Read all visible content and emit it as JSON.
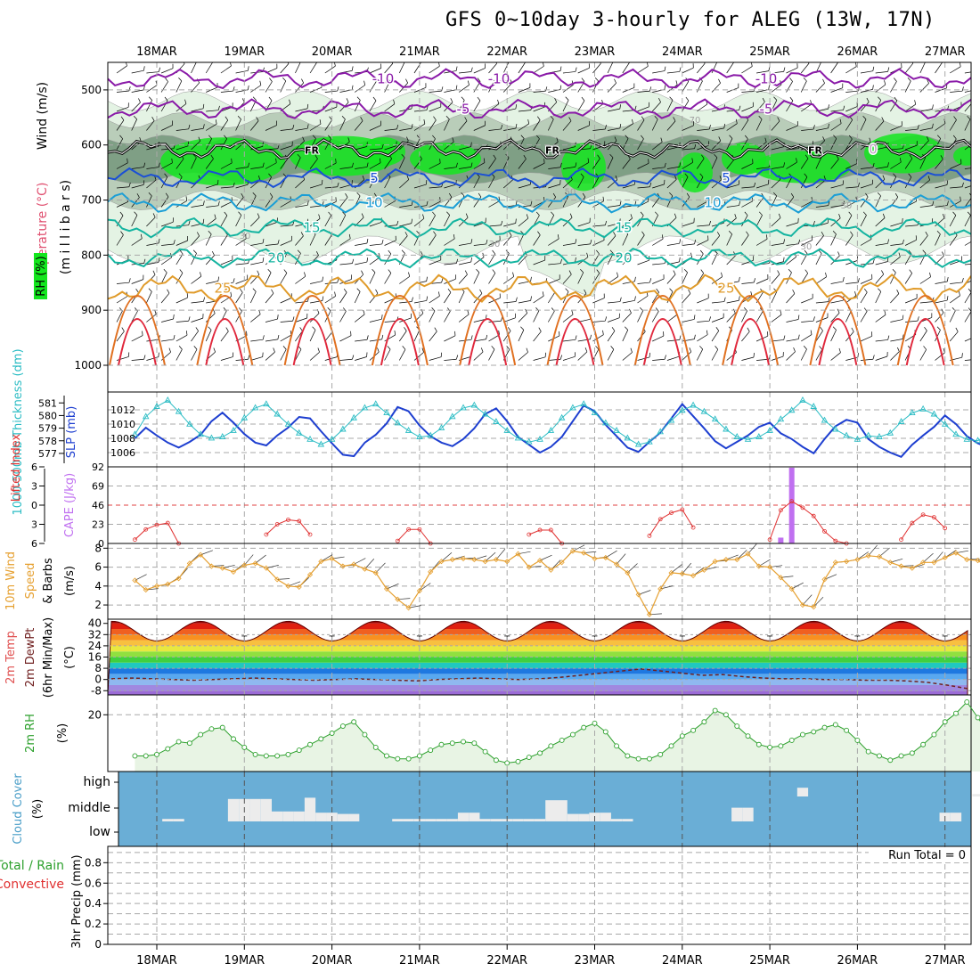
{
  "title": "GFS 0~10day 3-hourly for ALEG (13W, 17N)",
  "colors": {
    "grid": "#a8a8a8",
    "rh_light": "#e4f3e4",
    "rh_mid": "#b9cdb9",
    "rh_dark": "#7f9f85",
    "rh_green": "#14e61e",
    "t_purple": "#8a1aa8",
    "t_blue": "#1a4fd6",
    "t_cyan": "#1a9ed6",
    "t_teal": "#14b4a0",
    "t_orange": "#e09b2a",
    "t_dkorange": "#e07020",
    "t_red": "#e0283c",
    "slp": "#1e3fd0",
    "thick": "#2bbcc4",
    "cape": "#c070f0",
    "li": "#e03030",
    "wind": "#e6a030",
    "rh2m": "#2ca02c",
    "cloud": "#6aaed6",
    "cloud_clear": "#ececec"
  },
  "chart_data": [
    {
      "type": "contour",
      "name": "upper-air",
      "x_ticks": [
        "18MAR",
        "19MAR",
        "20MAR",
        "21MAR",
        "22MAR",
        "23MAR",
        "24MAR",
        "25MAR",
        "26MAR",
        "27MAR"
      ],
      "ylabel_parts": [
        "Wind (m/s)",
        "Temperature (°C)",
        "RH (%)",
        "(m i l l i b a r s)"
      ],
      "y_ticks": [
        "500",
        "600",
        "700",
        "800",
        "900",
        "1000"
      ],
      "ylim": [
        450,
        1000
      ],
      "isotherms": [
        {
          "label": "-10",
          "color": "#8a1aa8",
          "p": 480
        },
        {
          "label": "-5",
          "color": "#8a1aa8",
          "p": 535
        },
        {
          "label": "0",
          "color": "#8a1aa8",
          "p": 608
        },
        {
          "label": "5",
          "color": "#1a4fd6",
          "p": 660
        },
        {
          "label": "10",
          "color": "#1a9ed6",
          "p": 705
        },
        {
          "label": "15",
          "color": "#14b4a0",
          "p": 750
        },
        {
          "label": "20",
          "color": "#14b4a0",
          "p": 805
        },
        {
          "label": "25",
          "color": "#e09b2a",
          "p": 860
        }
      ],
      "freezing_label": "FR",
      "rh_labels": [
        "30",
        "50",
        "70"
      ]
    },
    {
      "type": "line",
      "name": "slp-thickness",
      "left_axis_label": "1000-500mb Thickness (dm)",
      "left_ticks": [
        "581",
        "580",
        "579",
        "578",
        "577"
      ],
      "right_axis_label": "SLP (mb)",
      "right_ticks": [
        "1012",
        "1010",
        "1008",
        "1006"
      ],
      "slp_ylim": [
        1005,
        1013.5
      ],
      "thick_ylim": [
        576.5,
        581.3
      ],
      "slp": [
        1008.0,
        1009.5,
        1008.4,
        1007.4,
        1006.7,
        1007.5,
        1008.5,
        1010.4,
        1011.6,
        1010.2,
        1008.6,
        1007.4,
        1007.0,
        1008.4,
        1009.5,
        1011.0,
        1010.8,
        1009.0,
        1007.3,
        1005.7,
        1005.5,
        1007.4,
        1008.5,
        1010.1,
        1012.4,
        1011.8,
        1009.8,
        1008.3,
        1007.4,
        1006.9,
        1007.9,
        1009.4,
        1011.4,
        1012.2,
        1010.4,
        1008.2,
        1007.1,
        1006.0,
        1006.8,
        1008.2,
        1010.4,
        1012.6,
        1011.8,
        1009.9,
        1008.3,
        1006.7,
        1006.1,
        1007.5,
        1008.8,
        1010.8,
        1012.8,
        1011.1,
        1009.4,
        1007.6,
        1006.6,
        1007.5,
        1008.4,
        1009.6,
        1010.2,
        1008.7,
        1007.9,
        1006.8,
        1005.9,
        1007.9,
        1009.7,
        1010.6,
        1010.2,
        1007.9,
        1006.8,
        1006.0,
        1005.4,
        1007.1,
        1008.4,
        1009.6,
        1011.2,
        1010.0,
        1008.3,
        1007.3,
        1006.7,
        1007.6,
        1009.3,
        1011.0,
        1010.8,
        1008.8,
        1007.4,
        1006.8,
        1006.2,
        1007.5,
        1009.5,
        1011.4,
        1012.7,
        1011.6,
        1009.4,
        1008.2,
        1007.5,
        1008.0,
        1008.8,
        1010.5,
        1011.0,
        1010.2,
        1009.1,
        1008.0,
        1007.6,
        1008.4,
        1009.8,
        1011.1,
        1010.3,
        1008.8,
        1007.4,
        1006.9,
        1008.0,
        1009.5,
        1010.5,
        1008.9,
        1007.3,
        1007.5,
        1006.9
      ],
      "thickness": [
        578.5,
        579.9,
        580.7,
        581.2,
        580.3,
        579.3,
        578.5,
        578.2,
        578.3,
        578.8,
        579.8,
        580.6,
        580.9,
        580.1,
        579.3,
        578.6,
        578.1,
        577.7,
        578.1,
        578.9,
        579.8,
        580.6,
        580.9,
        580.2,
        579.4,
        578.8,
        578.3,
        578.4,
        579.0,
        579.9,
        580.6,
        580.8,
        580.1,
        579.5,
        578.8,
        578.2,
        577.9,
        578.1,
        578.8,
        579.8,
        580.6,
        580.9,
        580.2,
        579.4,
        578.8,
        578.2,
        577.7,
        577.9,
        578.7,
        579.6,
        580.4,
        580.8,
        580.3,
        579.7,
        578.9,
        578.3,
        578.1,
        578.3,
        578.8,
        579.7,
        580.4,
        581.2,
        580.7,
        579.6,
        578.9,
        578.4,
        578.1,
        578.4,
        578.3,
        578.6,
        579.5,
        580.2,
        580.5,
        580.1,
        579.3,
        578.5,
        578.1,
        578.0,
        578.6,
        579.4,
        580.4,
        580.8,
        580.2,
        579.6,
        578.9,
        578.1,
        577.7,
        577.8,
        578.4,
        579.4,
        580.2,
        580.5,
        579.9,
        579.2,
        578.7,
        577.9,
        577.5,
        577.8,
        578.6,
        579.4,
        580.1,
        580.4,
        579.8,
        579.1,
        578.6,
        578.0,
        577.5,
        577.1,
        577.3,
        578.2,
        579.3,
        580.2,
        580.3,
        579.6,
        578.8,
        578.0,
        577.4
      ]
    },
    {
      "type": "bar+line",
      "name": "cape-li",
      "left_axis_label": "Lifted Index",
      "left_ticks": [
        "-6",
        "-3",
        "0",
        "3",
        "6"
      ],
      "right_axis_label": "CAPE (J/kg)",
      "right_ticks": [
        "92",
        "69",
        "46",
        "23",
        "0"
      ],
      "li_ylim": [
        6,
        -6
      ],
      "cape_ylim": [
        0,
        92
      ],
      "li_x": [
        0,
        1,
        2,
        3,
        4,
        12,
        13,
        14,
        15,
        16,
        24,
        25,
        26,
        27,
        36,
        37,
        38,
        39,
        47,
        48,
        49,
        50,
        51,
        58,
        59,
        60,
        61,
        62,
        63,
        64,
        65,
        70,
        71,
        72,
        73,
        74,
        82,
        83,
        84,
        95,
        106,
        107
      ],
      "li": [
        5.4,
        3.8,
        3.1,
        2.8,
        6,
        4.6,
        3.0,
        2.3,
        2.5,
        4.6,
        5.6,
        3.8,
        3.8,
        6,
        4.6,
        3.9,
        3.9,
        6,
        4.8,
        2.2,
        1.2,
        0.7,
        3.5,
        5.4,
        0.8,
        -0.6,
        0.4,
        1.7,
        4.1,
        5.6,
        6,
        5.4,
        2.8,
        1.5,
        1.9,
        3.6,
        4.1,
        3.6,
        4.6,
        5.6,
        4.8,
        4.3
      ],
      "cape_x": [
        59,
        60
      ],
      "cape": [
        7,
        91
      ]
    },
    {
      "type": "line",
      "name": "10m-wind",
      "axis_label": "10m Wind Speed & Barbs",
      "units_label": "(m/s)",
      "y_ticks": [
        "8",
        "6",
        "4",
        "2"
      ],
      "ylim": [
        0.5,
        8.5
      ],
      "values": [
        4.6,
        3.6,
        4.0,
        4.2,
        4.8,
        6.4,
        7.3,
        6.1,
        5.9,
        5.5,
        6.2,
        6.4,
        5.9,
        4.7,
        4.0,
        3.9,
        5.2,
        6.6,
        6.9,
        6.1,
        6.3,
        5.8,
        5.4,
        3.7,
        2.6,
        1.7,
        3.5,
        5.5,
        6.6,
        6.8,
        6.9,
        6.8,
        6.6,
        6.8,
        6.6,
        7.4,
        6.0,
        6.7,
        5.7,
        6.5,
        7.7,
        7.5,
        6.9,
        7.0,
        6.3,
        5.4,
        3.1,
        1.0,
        3.7,
        5.4,
        5.3,
        5.1,
        5.7,
        6.6,
        6.8,
        6.8,
        7.4,
        6.1,
        6.0,
        4.9,
        3.7,
        2.0,
        1.8,
        4.7,
        6.5,
        6.6,
        6.8,
        7.2,
        7.1,
        6.5,
        6.1,
        5.9,
        6.5,
        6.5,
        7.0,
        7.5,
        6.8,
        6.7,
        5.9,
        5.4,
        6.0,
        7.2,
        7.4,
        6.6,
        6.9,
        6.5,
        5.8,
        4.8,
        6.0,
        6.6,
        6.9,
        7.3,
        6.9,
        7.3,
        7.6,
        8.0,
        7.1,
        6.5,
        4.6,
        3.9,
        3.6,
        5.4,
        6.1,
        5.8,
        4.4,
        3.1,
        1.3,
        2.1,
        3.5,
        5.2,
        6.4,
        6.2,
        5.6,
        6.1,
        6.3,
        4.9
      ]
    },
    {
      "type": "area",
      "name": "2m-temp",
      "axis_label": "2m Temp 2m DewPt (6hr Min/Max)",
      "units_label": "(°C)",
      "y_ticks": [
        "40",
        "32",
        "24",
        "16",
        "8",
        "0",
        "-8"
      ],
      "ylim": [
        -11,
        43
      ],
      "temp_min": 27.5,
      "temp_max": 41.5,
      "daily_peak_x": [
        6,
        14,
        22,
        30,
        38,
        46,
        54,
        62,
        70,
        78,
        86,
        94,
        102,
        110
      ],
      "dewpoint": [
        0.5,
        1.0,
        0.5,
        0.0,
        -0.5,
        0.0,
        0.5,
        1.0,
        0.5,
        0.0,
        -0.5,
        0.0,
        0.5,
        0.0,
        -0.5,
        -1.0,
        0.0,
        0.5,
        1.0,
        0.5,
        0.0,
        0.5,
        1.5,
        3.0,
        4.5,
        6.0,
        7.5,
        6.0,
        4.5,
        3.0,
        3.5,
        2.0,
        1.0,
        0.5,
        0.5,
        0.0,
        0.0,
        -0.5,
        -0.5,
        -1.0,
        -2.0,
        -4.0,
        -6.5
      ]
    },
    {
      "type": "line",
      "name": "2m-rh",
      "axis_label": "2m RH",
      "units_label": "(%)",
      "y_ticks": [
        "20"
      ],
      "ylim": [
        0,
        27
      ],
      "values": [
        5.5,
        5.5,
        6.0,
        8.0,
        10.5,
        10.0,
        13.0,
        15.0,
        15.5,
        11.5,
        8.5,
        6.0,
        5.5,
        5.5,
        6.0,
        7.5,
        9.5,
        11.5,
        13.5,
        16.0,
        17.5,
        13.0,
        8.5,
        5.5,
        4.5,
        4.5,
        5.5,
        7.5,
        9.5,
        10.0,
        10.5,
        10.0,
        7.0,
        4.0,
        3.0,
        3.5,
        5.0,
        6.5,
        9.0,
        11.0,
        13.0,
        15.5,
        17.0,
        14.0,
        9.0,
        5.5,
        4.5,
        4.5,
        6.0,
        9.0,
        12.5,
        14.5,
        17.5,
        21.5,
        20.0,
        16.0,
        12.5,
        9.5,
        8.5,
        9.0,
        11.0,
        13.0,
        14.0,
        15.5,
        16.5,
        14.5,
        11.0,
        7.0,
        5.5,
        4.0,
        5.5,
        6.5,
        9.5,
        13.0,
        17.5,
        20.5,
        24.5,
        19.0,
        13.5,
        7.5,
        4.0,
        5.5,
        8.0,
        10.5,
        13.0,
        15.5,
        17.5,
        19.5,
        19.5,
        16.5,
        10.5,
        6.0,
        4.5,
        3.5,
        4.5,
        5.5,
        7.0,
        9.0,
        12.5,
        14.0,
        16.5,
        17.0,
        14.0,
        9.5,
        6.0,
        4.5,
        3.5,
        3.5,
        5.0,
        5.5,
        6.0,
        6.5,
        6.5,
        6.0,
        5.5,
        5.5,
        5.5
      ]
    },
    {
      "type": "heatmap",
      "name": "cloud-cover",
      "axis_label": "Cloud Cover",
      "units_label": "(%)",
      "y_ticks": [
        "high",
        "middle",
        "low"
      ],
      "levels": [
        "high",
        "middle",
        "low"
      ],
      "clear": [
        [
          110,
          0,
          0.05
        ],
        [
          111,
          0,
          0.35
        ],
        [
          112,
          0,
          0.75
        ],
        [
          113,
          0,
          0.35
        ],
        [
          85,
          0,
          0.45
        ],
        [
          86,
          0,
          0.95
        ],
        [
          87,
          0,
          0.95
        ],
        [
          88,
          0,
          0.95
        ],
        [
          89,
          0,
          0.95
        ],
        [
          90,
          0,
          0.95
        ],
        [
          91,
          0,
          0.95
        ],
        [
          92,
          0,
          0.95
        ],
        [
          93,
          0,
          0.95
        ],
        [
          94,
          0,
          0.95
        ],
        [
          95,
          0,
          0.95
        ],
        [
          96,
          0,
          0.95
        ],
        [
          97,
          0,
          0.95
        ],
        [
          98,
          0,
          0.95
        ],
        [
          99,
          0,
          0.95
        ],
        [
          100,
          0,
          0.95
        ],
        [
          82,
          0,
          0.3
        ],
        [
          83,
          0,
          0.3
        ],
        [
          84,
          0,
          0.3
        ],
        [
          77,
          0,
          0.1
        ],
        [
          61,
          0,
          0.35
        ],
        [
          9,
          1,
          0.9
        ],
        [
          10,
          1,
          0.9
        ],
        [
          11,
          1,
          0.9
        ],
        [
          12,
          1,
          0.9
        ],
        [
          13,
          1,
          0.4
        ],
        [
          14,
          1,
          0.4
        ],
        [
          15,
          1,
          0.4
        ],
        [
          16,
          1,
          0.95
        ],
        [
          17,
          1,
          0.35
        ],
        [
          18,
          1,
          0.35
        ],
        [
          19,
          1,
          0.3
        ],
        [
          20,
          1,
          0.3
        ],
        [
          3,
          1,
          0.1
        ],
        [
          4,
          1,
          0.1
        ],
        [
          24,
          1,
          0.1
        ],
        [
          25,
          1,
          0.1
        ],
        [
          26,
          1,
          0.1
        ],
        [
          27,
          1,
          0.1
        ],
        [
          28,
          1,
          0.1
        ],
        [
          29,
          1,
          0.1
        ],
        [
          30,
          1,
          0.35
        ],
        [
          31,
          1,
          0.35
        ],
        [
          32,
          1,
          0.1
        ],
        [
          33,
          1,
          0.1
        ],
        [
          34,
          1,
          0.1
        ],
        [
          35,
          1,
          0.1
        ],
        [
          36,
          1,
          0.1
        ],
        [
          37,
          1,
          0.1
        ],
        [
          38,
          1,
          0.85
        ],
        [
          39,
          1,
          0.85
        ],
        [
          40,
          1,
          0.3
        ],
        [
          41,
          1,
          0.3
        ],
        [
          42,
          1,
          0.35
        ],
        [
          43,
          1,
          0.35
        ],
        [
          44,
          1,
          0.1
        ],
        [
          45,
          1,
          0.1
        ],
        [
          55,
          1,
          0.55
        ],
        [
          56,
          1,
          0.55
        ],
        [
          74,
          1,
          0.35
        ],
        [
          75,
          1,
          0.35
        ],
        [
          90,
          1,
          0.1
        ],
        [
          91,
          1,
          0.1
        ],
        [
          92,
          1,
          0.3
        ],
        [
          93,
          1,
          0.3
        ],
        [
          94,
          1,
          0.55
        ],
        [
          95,
          1,
          0.55
        ],
        [
          96,
          1,
          0.9
        ],
        [
          97,
          1,
          0.9
        ],
        [
          98,
          1,
          0.1
        ],
        [
          99,
          1,
          0.1
        ],
        [
          100,
          1,
          0.1
        ],
        [
          101,
          1,
          0.1
        ],
        [
          102,
          1,
          0.1
        ],
        [
          103,
          1,
          0.1
        ],
        [
          104,
          1,
          0.1
        ],
        [
          105,
          1,
          0.1
        ]
      ]
    },
    {
      "type": "bar",
      "name": "precip",
      "axis_label_total": "Total / Rain",
      "axis_label_conv": "Convective",
      "units_label": "3hr Precip (mm)",
      "y_ticks": [
        "0.8",
        "0.6",
        "0.4",
        "0.2",
        "0"
      ],
      "ylim": [
        0,
        0.96
      ],
      "run_total": "Run Total = 0",
      "values": []
    }
  ]
}
